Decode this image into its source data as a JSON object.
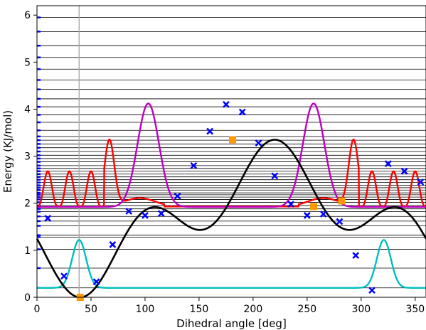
{
  "chart_data": {
    "type": "line",
    "xlabel": "Dihedral angle [deg]",
    "ylabel": "Energy (KJ/mol)",
    "xlim": [
      0,
      360
    ],
    "ylim": [
      0,
      6.2
    ],
    "x_ticks": [
      0,
      50,
      100,
      150,
      200,
      250,
      300,
      350
    ],
    "y_ticks": [
      0,
      1,
      2,
      3,
      4,
      5,
      6
    ],
    "vertical_marker_x": 39,
    "colors": {
      "potential": "#000000",
      "state_0": "#00bfbf",
      "state_mid": "#ff0000",
      "state_high": "#bf00bf",
      "samples": "#0000ff",
      "minima": "#ff9900",
      "energy_levels": "#000000",
      "level_ticks": "#0000ff",
      "vline": "#aaaaaa"
    },
    "potential": {
      "equation_description": "periodic torsion",
      "min_x": [
        40,
        320
      ],
      "max_y": 3.35
    },
    "energy_levels": [
      0.2,
      0.62,
      1.02,
      1.28,
      1.32,
      1.52,
      1.62,
      1.72,
      1.82,
      1.88,
      1.95,
      2.02,
      2.08,
      2.13,
      2.18,
      2.22,
      2.28,
      2.33,
      2.38,
      2.44,
      2.5,
      2.56,
      2.62,
      2.68,
      2.74,
      2.8,
      2.88,
      2.95,
      3.02,
      3.1,
      3.18,
      3.26,
      3.34,
      3.42,
      3.55,
      3.72,
      3.88,
      4.05,
      4.22,
      4.42,
      4.62,
      4.85,
      5.1,
      5.35,
      5.65,
      5.95
    ],
    "samples": [
      {
        "x": 10,
        "y": 1.68
      },
      {
        "x": 25,
        "y": 0.45
      },
      {
        "x": 55,
        "y": 0.33
      },
      {
        "x": 70,
        "y": 1.12
      },
      {
        "x": 85,
        "y": 1.83
      },
      {
        "x": 100,
        "y": 1.74
      },
      {
        "x": 115,
        "y": 1.78
      },
      {
        "x": 130,
        "y": 2.15
      },
      {
        "x": 145,
        "y": 2.8
      },
      {
        "x": 160,
        "y": 3.53
      },
      {
        "x": 175,
        "y": 4.1
      },
      {
        "x": 190,
        "y": 3.94
      },
      {
        "x": 205,
        "y": 3.28
      },
      {
        "x": 220,
        "y": 2.58
      },
      {
        "x": 235,
        "y": 1.98
      },
      {
        "x": 250,
        "y": 1.74
      },
      {
        "x": 265,
        "y": 1.77
      },
      {
        "x": 280,
        "y": 1.61
      },
      {
        "x": 295,
        "y": 0.89
      },
      {
        "x": 310,
        "y": 0.15
      },
      {
        "x": 325,
        "y": 2.84
      },
      {
        "x": 340,
        "y": 2.68
      },
      {
        "x": 355,
        "y": 2.45
      }
    ],
    "minima_markers": [
      {
        "x": 40,
        "y": 0.0
      },
      {
        "x": 181,
        "y": 3.35
      },
      {
        "x": 256,
        "y": 1.93
      },
      {
        "x": 282,
        "y": 2.05
      }
    ]
  }
}
